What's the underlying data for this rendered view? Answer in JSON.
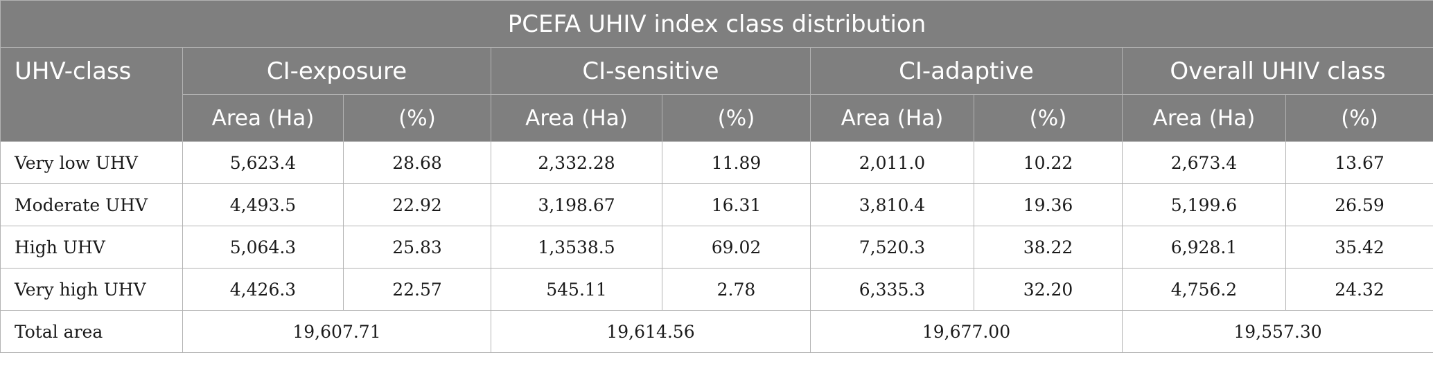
{
  "table": {
    "title": "PCEFA UHIV index class distribution",
    "row_header_label": "UHV-class",
    "groups": [
      "CI-exposure",
      "CI-sensitive",
      "CI-adaptive",
      "Overall UHIV class"
    ],
    "sub_headers": {
      "area": "Area (Ha)",
      "percent": "(%)"
    },
    "rows": [
      {
        "label": "Very low UHV",
        "cells": [
          "5,623.4",
          "28.68",
          "2,332.28",
          "11.89",
          "2,011.0",
          "10.22",
          "2,673.4",
          "13.67"
        ]
      },
      {
        "label": "Moderate UHV",
        "cells": [
          "4,493.5",
          "22.92",
          "3,198.67",
          "16.31",
          "3,810.4",
          "19.36",
          "5,199.6",
          "26.59"
        ]
      },
      {
        "label": "High UHV",
        "cells": [
          "5,064.3",
          "25.83",
          "1,3538.5",
          "69.02",
          "7,520.3",
          "38.22",
          "6,928.1",
          "35.42"
        ]
      },
      {
        "label": "Very high UHV",
        "cells": [
          "4,426.3",
          "22.57",
          "545.11",
          "2.78",
          "6,335.3",
          "32.20",
          "4,756.2",
          "24.32"
        ]
      }
    ],
    "total": {
      "label": "Total area",
      "values": [
        "19,607.71",
        "19,614.56",
        "19,677.00",
        "19,557.30"
      ]
    }
  }
}
